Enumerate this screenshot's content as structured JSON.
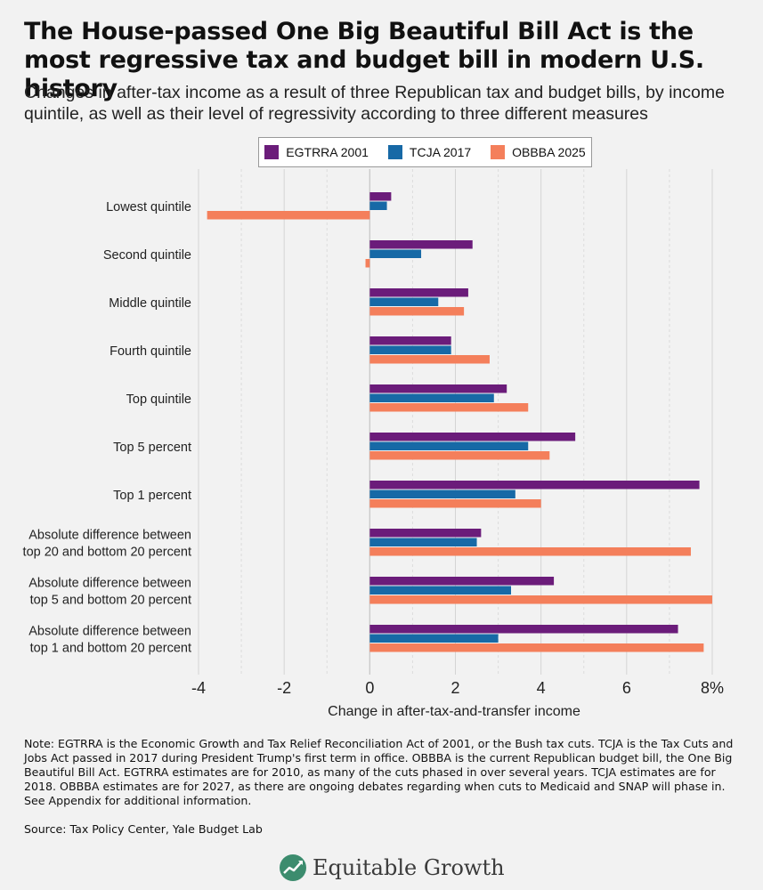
{
  "title": "The House-passed One Big Beautiful Bill Act is the most regressive tax and budget bill in modern U.S. history",
  "subtitle": "Changes in after-tax income as a result of three Republican tax and budget bills, by income quintile, as well as their level of regressivity according to three different measures",
  "colors": {
    "EGTRRA 2001": "#6b1c7a",
    "TCJA 2017": "#1769a6",
    "OBBBA 2025": "#f47f5b"
  },
  "chart_data": {
    "type": "bar",
    "orientation": "horizontal",
    "title": "The House-passed One Big Beautiful Bill Act is the most regressive tax and budget bill in modern U.S. history",
    "xlabel": "Change in after-tax-and-transfer income",
    "ylabel": "",
    "xlim": [
      -4,
      8
    ],
    "xticks": [
      -4,
      -2,
      0,
      2,
      4,
      6,
      8
    ],
    "xtick_labels": [
      "-4",
      "-2",
      "0",
      "2",
      "4",
      "6",
      "8%"
    ],
    "legend_position": "top-center",
    "categories": [
      [
        "Lowest quintile"
      ],
      [
        "Second quintile"
      ],
      [
        "Middle quintile"
      ],
      [
        "Fourth quintile"
      ],
      [
        "Top quintile"
      ],
      [
        "Top 5 percent"
      ],
      [
        "Top 1 percent"
      ],
      [
        "Absolute difference between",
        "top 20 and bottom 20 percent"
      ],
      [
        "Absolute difference between",
        "top 5 and bottom 20 percent"
      ],
      [
        "Absolute difference between",
        "top 1 and bottom 20 percent"
      ]
    ],
    "series": [
      {
        "name": "EGTRRA 2001",
        "values": [
          0.5,
          2.4,
          2.3,
          1.9,
          3.2,
          4.8,
          7.7,
          2.6,
          4.3,
          7.2
        ]
      },
      {
        "name": "TCJA 2017",
        "values": [
          0.4,
          1.2,
          1.6,
          1.9,
          2.9,
          3.7,
          3.4,
          2.5,
          3.3,
          3.0
        ]
      },
      {
        "name": "OBBBA 2025",
        "values": [
          -3.8,
          -0.1,
          2.2,
          2.8,
          3.7,
          4.2,
          4.0,
          7.5,
          8.0,
          7.8
        ]
      }
    ]
  },
  "note": "Note: EGTRRA is the Economic Growth and Tax Relief Reconciliation Act of 2001, or the Bush tax cuts. TCJA is the Tax Cuts and Jobs Act passed in 2017 during President Trump's first term in office. OBBBA is the current Republican budget bill, the One Big Beautiful Bill Act. EGTRRA estimates are for 2010, as many of the cuts phased in over several years. TCJA estimates are for 2018. OBBBA estimates are for 2027, as there are ongoing debates regarding when cuts to Medicaid and SNAP will phase in. See Appendix for additional information.",
  "source": "Source: Tax Policy Center, Yale Budget Lab",
  "brand": {
    "name": "Equitable Growth",
    "icon": "leaf-chart-icon"
  }
}
